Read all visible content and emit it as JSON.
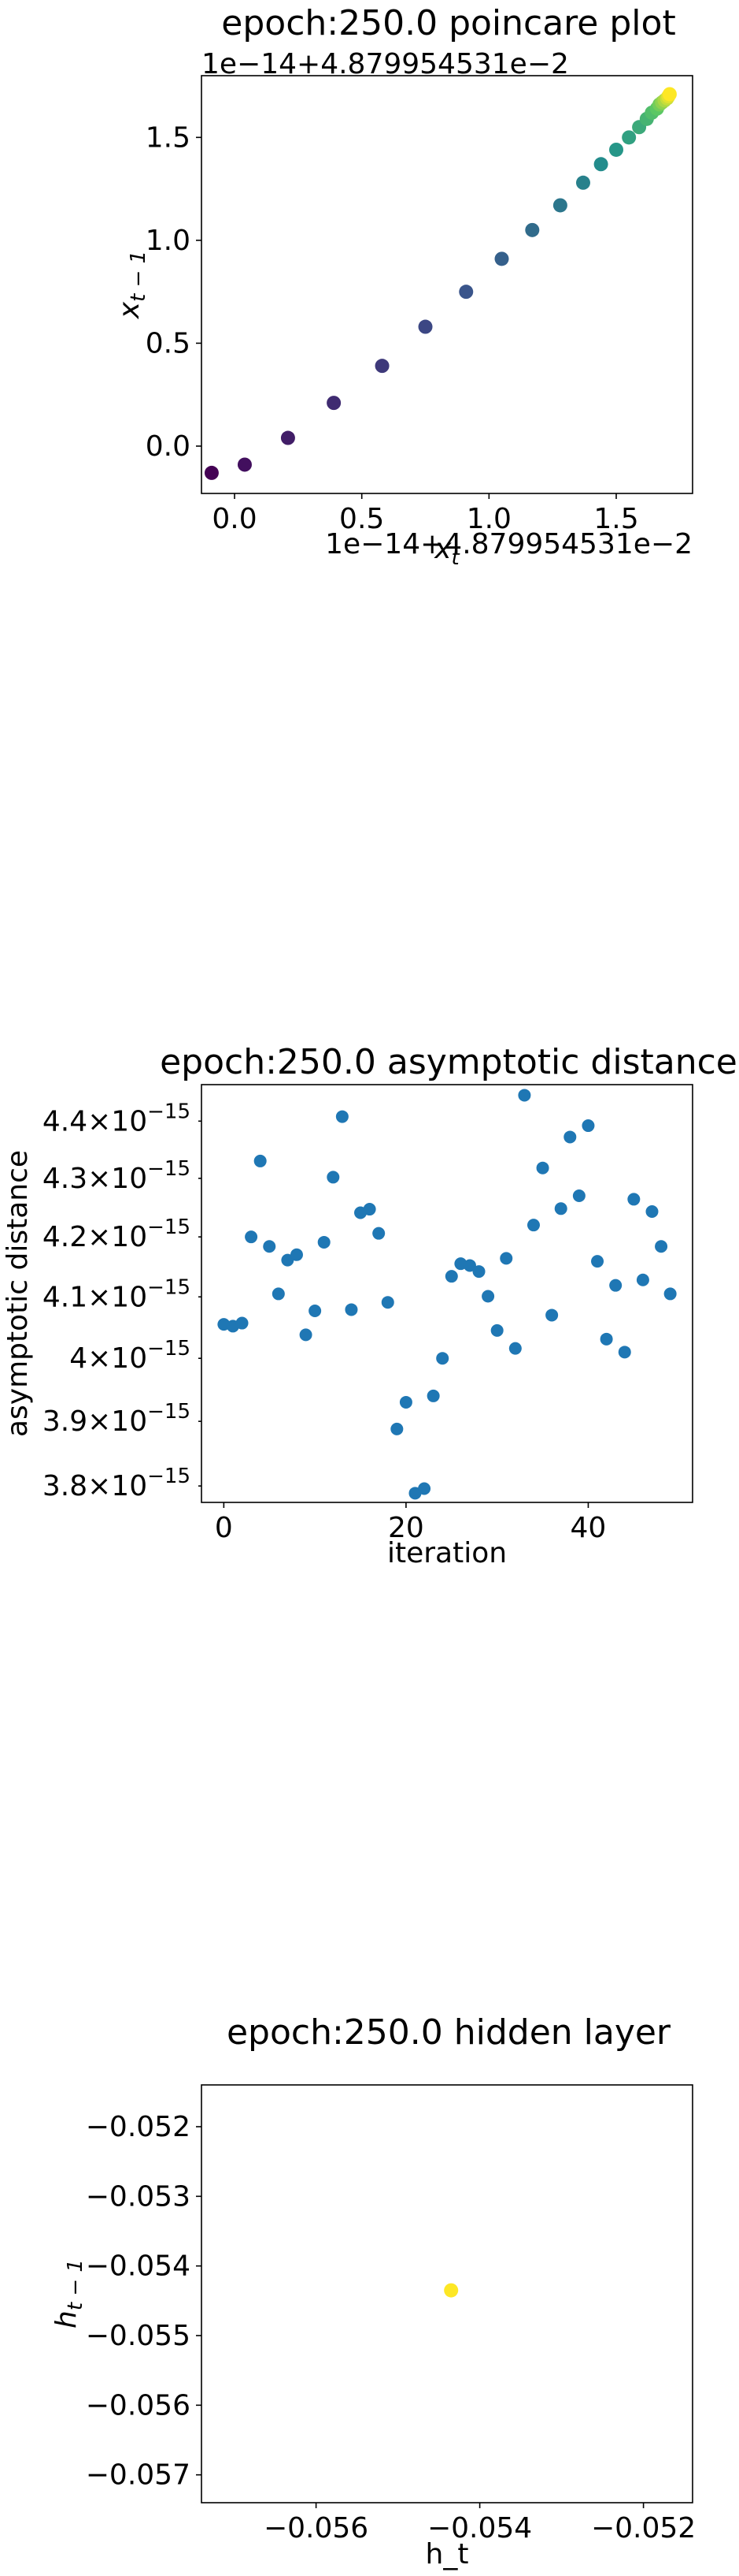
{
  "chart_data": [
    {
      "type": "scatter",
      "title": "epoch:250.0 poincare plot",
      "xlabel": "x_t",
      "ylabel": "x_{t-1}",
      "x_offset_text": "1e−14+4.879954531e−2",
      "y_offset_text": "1e−14+4.879954531e−2",
      "xlim": [
        -0.13,
        1.8
      ],
      "ylim": [
        -0.23,
        1.8
      ],
      "x_ticks": [
        0.0,
        0.5,
        1.0,
        1.5
      ],
      "x_tick_labels": [
        "0.0",
        "0.5",
        "1.0",
        "1.5"
      ],
      "y_ticks": [
        0.0,
        0.5,
        1.0,
        1.5
      ],
      "y_tick_labels": [
        "0.0",
        "0.5",
        "1.0",
        "1.5"
      ],
      "colormap": "viridis",
      "grid": false,
      "x": [
        -0.09,
        0.04,
        0.21,
        0.39,
        0.58,
        0.75,
        0.91,
        1.05,
        1.17,
        1.28,
        1.37,
        1.44,
        1.5,
        1.55,
        1.59,
        1.62,
        1.64,
        1.66,
        1.67,
        1.68,
        1.69,
        1.7,
        1.705,
        1.71
      ],
      "y": [
        -0.13,
        -0.09,
        0.04,
        0.21,
        0.39,
        0.58,
        0.75,
        0.91,
        1.05,
        1.17,
        1.28,
        1.37,
        1.44,
        1.5,
        1.55,
        1.59,
        1.62,
        1.64,
        1.66,
        1.67,
        1.68,
        1.69,
        1.7,
        1.71
      ]
    },
    {
      "type": "scatter",
      "title": "epoch:250.0 asymptotic distance",
      "xlabel": "iteration",
      "ylabel": "asymptotic distance",
      "y_scale": "log",
      "xlim": [
        -2.45,
        51.45
      ],
      "ylim": [
        3.775e-15,
        4.465e-15
      ],
      "x_ticks": [
        0,
        20,
        40
      ],
      "x_tick_labels": [
        "0",
        "20",
        "40"
      ],
      "y_ticks": [
        3.8e-15,
        3.9e-15,
        4e-15,
        4.1e-15,
        4.2e-15,
        4.3e-15,
        4.4e-15
      ],
      "y_tick_mantissas": [
        "3.8",
        "3.9",
        "4",
        "4.1",
        "4.2",
        "4.3",
        "4.4"
      ],
      "y_tick_base": "×10",
      "y_tick_exponent": "−15",
      "color": "#1f77b4",
      "grid": false,
      "x": [
        0,
        1,
        2,
        3,
        4,
        5,
        6,
        7,
        8,
        9,
        10,
        11,
        12,
        13,
        14,
        15,
        16,
        17,
        18,
        19,
        20,
        21,
        22,
        23,
        24,
        25,
        26,
        27,
        28,
        29,
        30,
        31,
        32,
        33,
        34,
        35,
        36,
        37,
        38,
        39,
        40,
        41,
        42,
        43,
        44,
        45,
        46,
        47,
        48,
        49
      ],
      "y": [
        4.055e-15,
        4.052e-15,
        4.057e-15,
        4.2e-15,
        4.33e-15,
        4.184e-15,
        4.105e-15,
        4.161e-15,
        4.17e-15,
        4.038e-15,
        4.077e-15,
        4.191e-15,
        4.302e-15,
        4.408e-15,
        4.079e-15,
        4.241e-15,
        4.247e-15,
        4.206e-15,
        4.091e-15,
        3.888e-15,
        3.93e-15,
        3.789e-15,
        3.796e-15,
        3.94e-15,
        4e-15,
        4.134e-15,
        4.155e-15,
        4.152e-15,
        4.142e-15,
        4.101e-15,
        4.045e-15,
        4.164e-15,
        4.016e-15,
        4.446e-15,
        4.22e-15,
        4.318e-15,
        4.07e-15,
        4.248e-15,
        4.372e-15,
        4.27e-15,
        4.392e-15,
        4.159e-15,
        4.031e-15,
        4.119e-15,
        4.01e-15,
        4.264e-15,
        4.128e-15,
        4.243e-15,
        4.184e-15,
        4.105e-15
      ]
    },
    {
      "type": "scatter",
      "title": "epoch:250.0 hidden layer",
      "xlabel": "h_t",
      "ylabel": "h_{t-1}",
      "xlim": [
        -0.0574,
        -0.0514
      ],
      "ylim": [
        -0.0574,
        -0.0514
      ],
      "x_ticks": [
        -0.056,
        -0.054,
        -0.052
      ],
      "x_tick_labels": [
        "−0.056",
        "−0.054",
        "−0.052"
      ],
      "y_ticks": [
        -0.057,
        -0.056,
        -0.055,
        -0.054,
        -0.053,
        -0.052
      ],
      "y_tick_labels": [
        "−0.057",
        "−0.056",
        "−0.055",
        "−0.054",
        "−0.053",
        "−0.052"
      ],
      "color": "#fde725",
      "grid": false,
      "x": [
        -0.05435
      ],
      "y": [
        -0.05435
      ]
    }
  ]
}
